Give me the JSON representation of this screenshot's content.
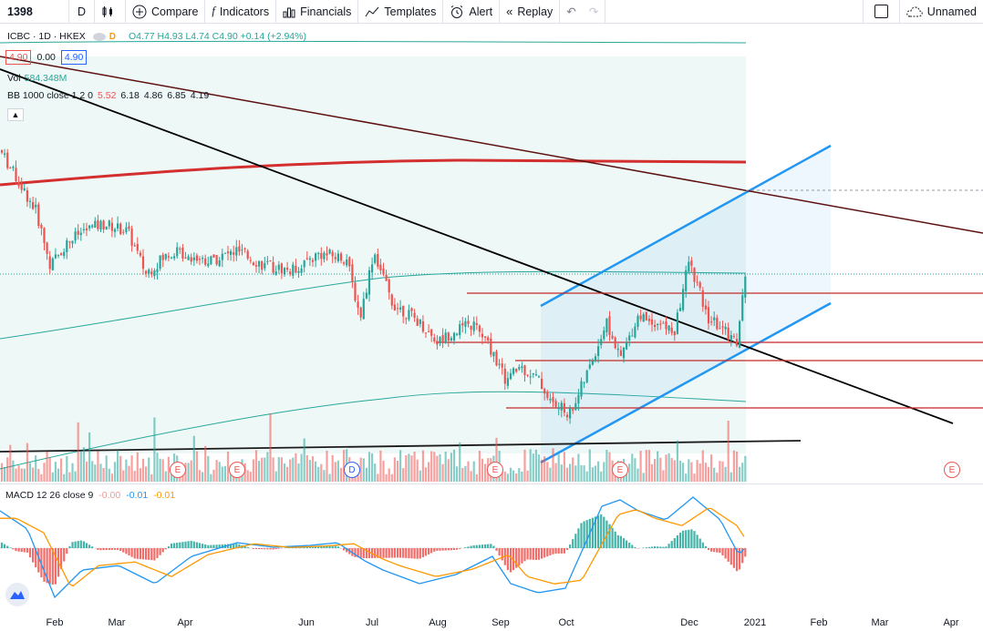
{
  "toolbar": {
    "symbol": "1398",
    "interval": "D",
    "compare": "Compare",
    "indicators": "Indicators",
    "financials": "Financials",
    "templates": "Templates",
    "alert": "Alert",
    "replay": "Replay",
    "layout_name": "Unnamed"
  },
  "legend": {
    "title": "ICBC · 1D · HKEX",
    "ohlc": "O4.77 H4.93 L4.74 C4.90 +0.14 (+2.94%)",
    "bid": "4.90",
    "spread": "0.00",
    "ask": "4.90",
    "vol_label": "Vol",
    "vol_value": "584.348M",
    "bb_label": "BB 1000 close 1 2 0",
    "bb_values": [
      "5.52",
      "6.18",
      "4.86",
      "6.85",
      "4.19"
    ],
    "macd_label": "MACD 12 26 close 9",
    "macd_values": [
      "-0.00",
      "-0.01",
      "-0.01"
    ],
    "d_badge": "D"
  },
  "time_axis": [
    "Feb",
    "Mar",
    "Apr",
    "Jun",
    "Jul",
    "Aug",
    "Sep",
    "Oct",
    "Dec",
    "2021",
    "Feb",
    "Mar",
    "Apr"
  ],
  "event_badges": [
    "E",
    "E",
    "D",
    "E",
    "E",
    "E"
  ],
  "colors": {
    "up": "#26a69a",
    "down": "#ef5350",
    "bb": "#26a69a",
    "channel": "#2196f3",
    "hline": "#c62828",
    "trend": "#000000",
    "macd_line": "#2196f3",
    "signal_line": "#ff9800"
  },
  "chart_data": {
    "type": "candlestick",
    "note_series": "price path approximated from screenshot",
    "keypoints": [
      [
        0,
        5.4
      ],
      [
        40,
        5.15
      ],
      [
        55,
        4.93
      ],
      [
        75,
        5.03
      ],
      [
        95,
        5.08
      ],
      [
        115,
        5.1
      ],
      [
        140,
        5.07
      ],
      [
        160,
        4.9
      ],
      [
        175,
        4.95
      ],
      [
        190,
        4.99
      ],
      [
        230,
        4.95
      ],
      [
        260,
        4.99
      ],
      [
        290,
        4.93
      ],
      [
        320,
        4.91
      ],
      [
        350,
        4.98
      ],
      [
        380,
        4.96
      ],
      [
        395,
        4.72
      ],
      [
        410,
        4.99
      ],
      [
        430,
        4.78
      ],
      [
        460,
        4.7
      ],
      [
        480,
        4.62
      ],
      [
        500,
        4.67
      ],
      [
        520,
        4.69
      ],
      [
        540,
        4.58
      ],
      [
        555,
        4.46
      ],
      [
        570,
        4.52
      ],
      [
        590,
        4.47
      ],
      [
        605,
        4.37
      ],
      [
        625,
        4.33
      ],
      [
        645,
        4.5
      ],
      [
        665,
        4.7
      ],
      [
        680,
        4.55
      ],
      [
        700,
        4.73
      ],
      [
        720,
        4.7
      ],
      [
        740,
        4.66
      ],
      [
        755,
        4.95
      ],
      [
        765,
        4.85
      ],
      [
        775,
        4.72
      ],
      [
        790,
        4.68
      ],
      [
        808,
        4.62
      ],
      [
        818,
        4.9
      ]
    ],
    "volume_note": "volume bars approximated"
  }
}
